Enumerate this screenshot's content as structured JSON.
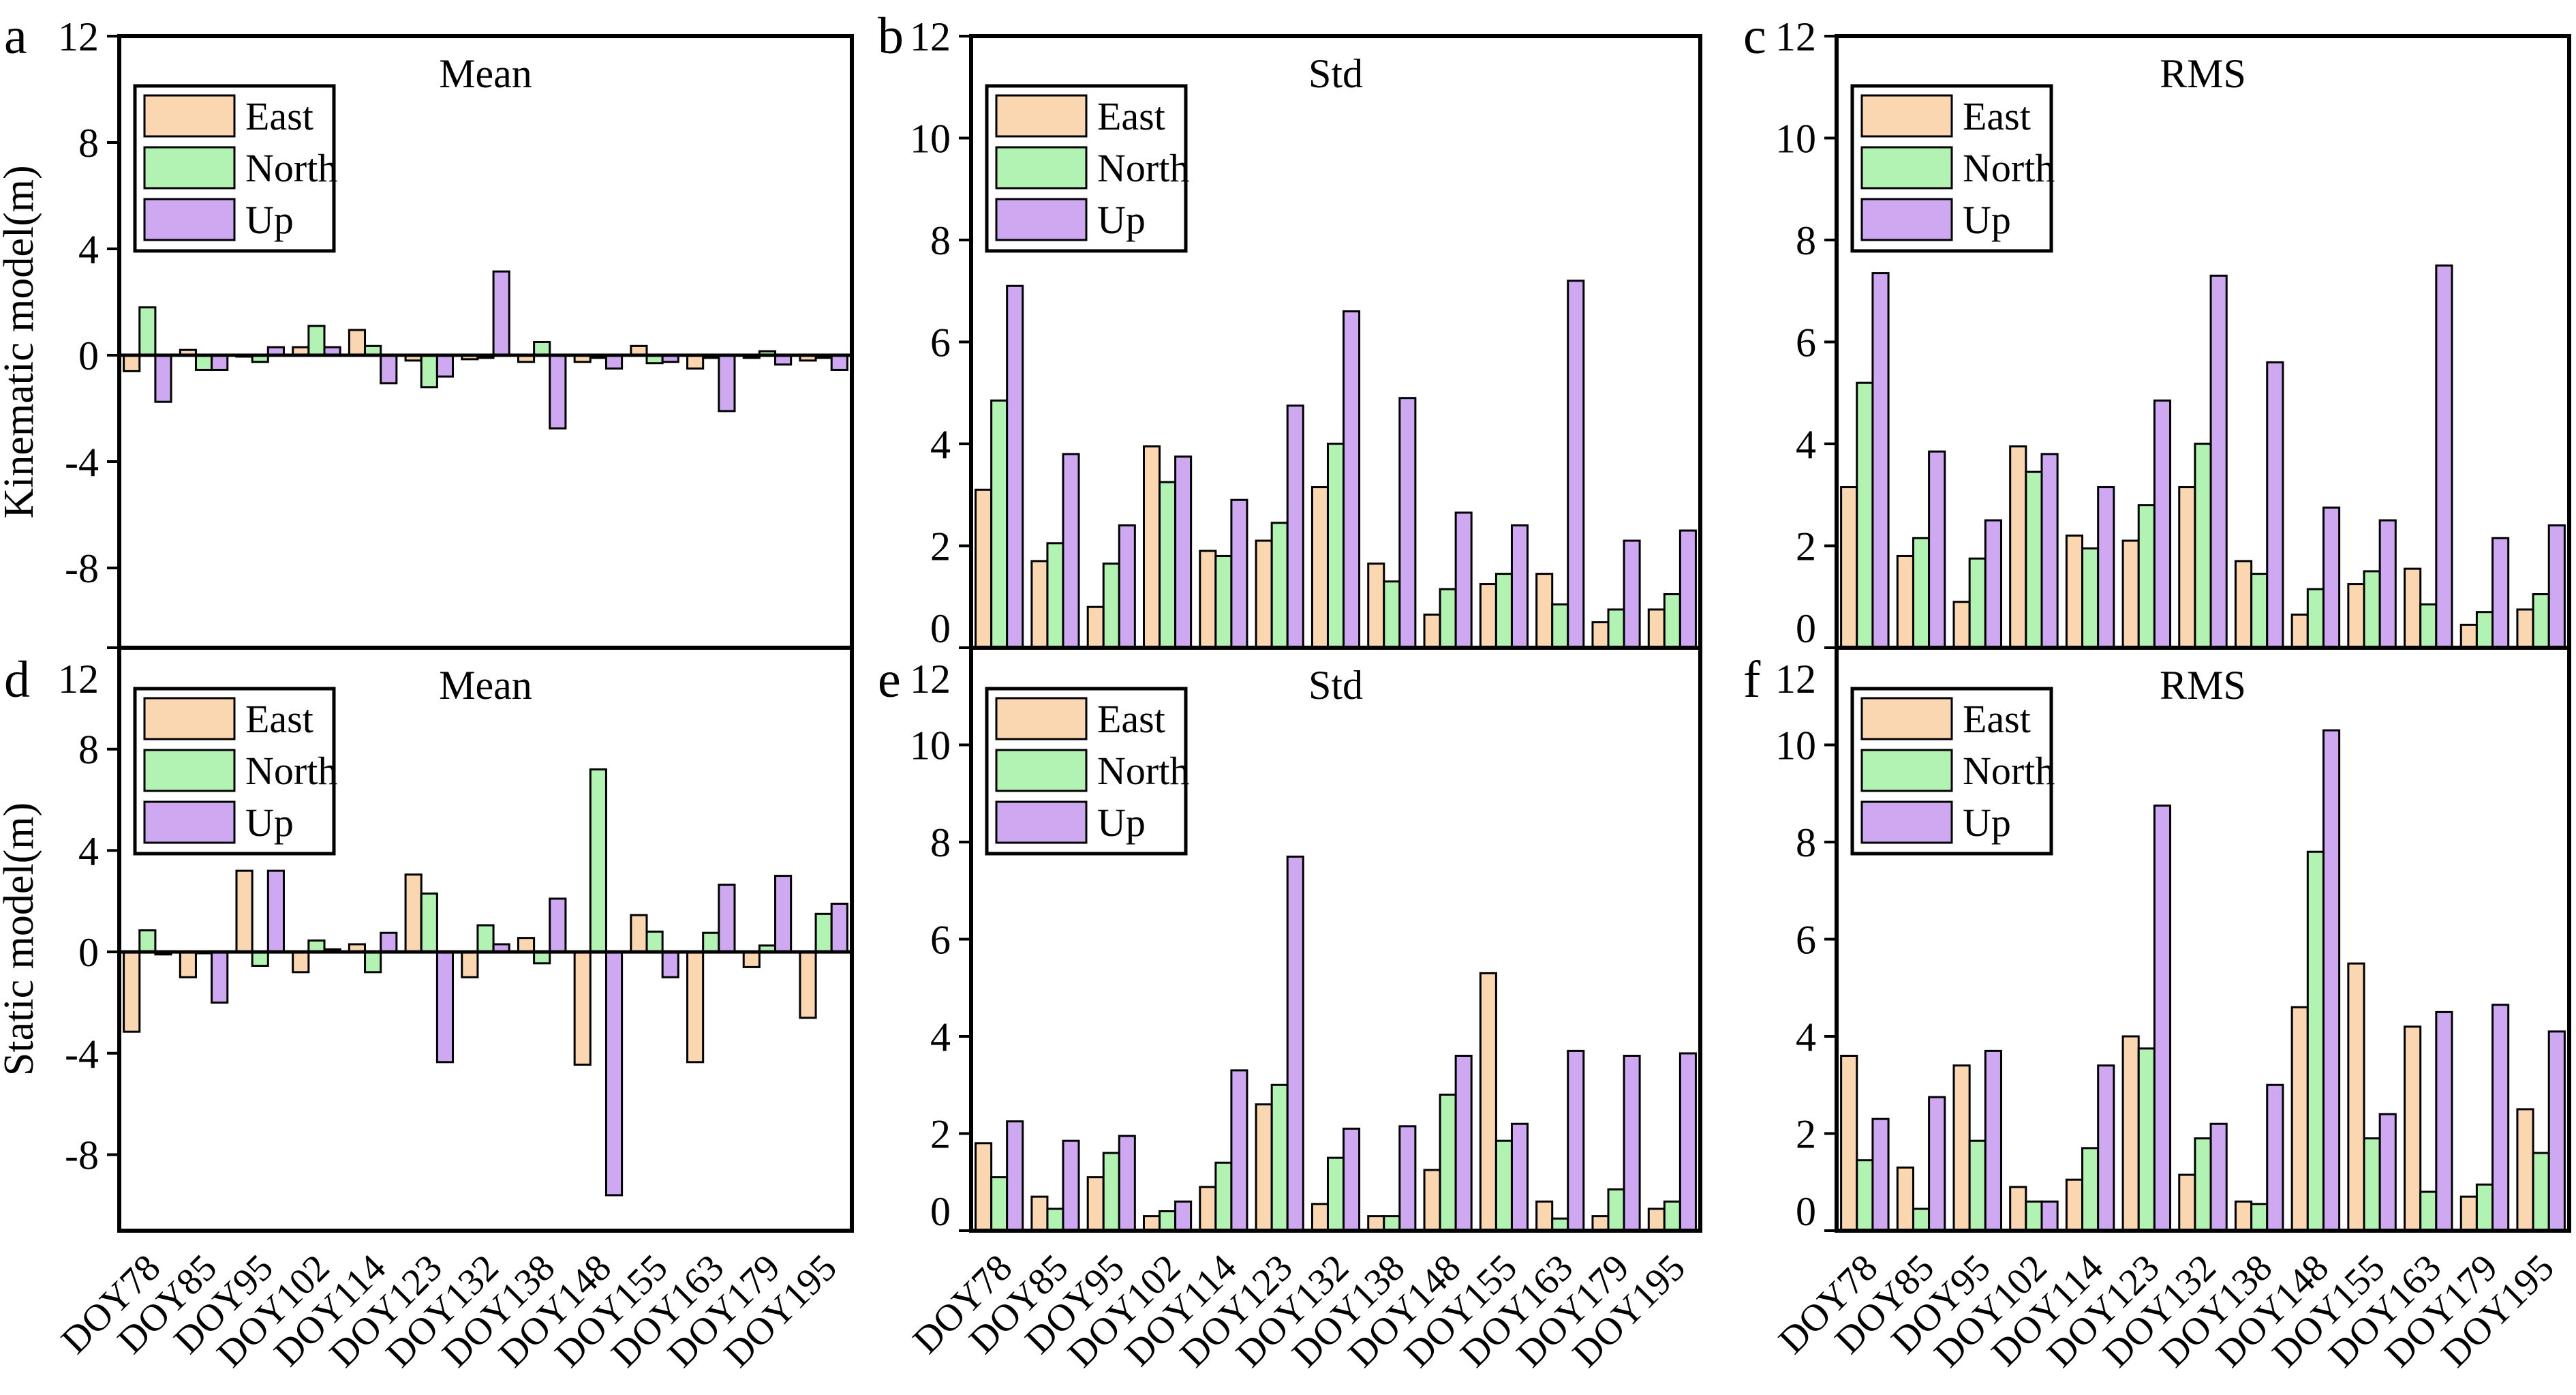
{
  "figure": {
    "background": "#ffffff",
    "axis_color": "#000000",
    "y_axis_titles": {
      "top_row": "Kinematic model(m)",
      "bottom_row": "Static model(m)"
    },
    "legend": {
      "entries": [
        {
          "label": "East",
          "color": "#FAD6B1"
        },
        {
          "label": "North",
          "color": "#B2F2B2"
        },
        {
          "label": "Up",
          "color": "#CEA9F2"
        }
      ],
      "position": "upper-left"
    }
  },
  "chart_data": [
    {
      "id": "a",
      "letter": "a",
      "title": "Mean",
      "type": "bar",
      "row": "top",
      "y_label": "Kinematic model(m)",
      "ylim": [
        -11,
        12
      ],
      "yticks": [
        12,
        8,
        4,
        0,
        -4,
        -8
      ],
      "grid": false,
      "show_x_labels": false,
      "categories": [
        "DOY78",
        "DOY85",
        "DOY95",
        "DOY102",
        "DOY114",
        "DOY123",
        "DOY132",
        "DOY138",
        "DOY148",
        "DOY155",
        "DOY163",
        "DOY179",
        "DOY195"
      ],
      "series": [
        {
          "name": "East",
          "values": [
            -0.6,
            0.2,
            -0.05,
            0.3,
            0.95,
            -0.2,
            -0.15,
            -0.25,
            -0.25,
            0.35,
            -0.5,
            -0.1,
            -0.2
          ]
        },
        {
          "name": "North",
          "values": [
            1.8,
            -0.55,
            -0.25,
            1.1,
            0.35,
            -1.2,
            -0.1,
            0.5,
            -0.1,
            -0.3,
            -0.1,
            0.15,
            -0.1
          ]
        },
        {
          "name": "Up",
          "values": [
            -1.75,
            -0.55,
            0.3,
            0.3,
            -1.05,
            -0.8,
            3.15,
            -2.75,
            -0.5,
            -0.25,
            -2.1,
            -0.35,
            -0.55
          ]
        }
      ]
    },
    {
      "id": "b",
      "letter": "b",
      "title": "Std",
      "type": "bar",
      "row": "top",
      "y_label": "",
      "ylim": [
        0,
        12
      ],
      "yticks": [
        12,
        10,
        8,
        6,
        4,
        2,
        0
      ],
      "grid": false,
      "show_x_labels": false,
      "categories": [
        "DOY78",
        "DOY85",
        "DOY95",
        "DOY102",
        "DOY114",
        "DOY123",
        "DOY132",
        "DOY138",
        "DOY148",
        "DOY155",
        "DOY163",
        "DOY179",
        "DOY195"
      ],
      "series": [
        {
          "name": "East",
          "values": [
            3.1,
            1.7,
            0.8,
            3.95,
            1.9,
            2.1,
            3.15,
            1.65,
            0.65,
            1.25,
            1.45,
            0.5,
            0.75
          ]
        },
        {
          "name": "North",
          "values": [
            4.85,
            2.05,
            1.65,
            3.25,
            1.8,
            2.45,
            4.0,
            1.3,
            1.15,
            1.45,
            0.85,
            0.75,
            1.05
          ]
        },
        {
          "name": "Up",
          "values": [
            7.1,
            3.8,
            2.4,
            3.75,
            2.9,
            4.75,
            6.6,
            4.9,
            2.65,
            2.4,
            7.2,
            2.1,
            2.3
          ]
        }
      ]
    },
    {
      "id": "c",
      "letter": "c",
      "title": "RMS",
      "type": "bar",
      "row": "top",
      "y_label": "",
      "ylim": [
        0,
        12
      ],
      "yticks": [
        12,
        10,
        8,
        6,
        4,
        2,
        0
      ],
      "grid": false,
      "show_x_labels": false,
      "categories": [
        "DOY78",
        "DOY85",
        "DOY95",
        "DOY102",
        "DOY114",
        "DOY123",
        "DOY132",
        "DOY138",
        "DOY148",
        "DOY155",
        "DOY163",
        "DOY179",
        "DOY195"
      ],
      "series": [
        {
          "name": "East",
          "values": [
            3.15,
            1.8,
            0.9,
            3.95,
            2.2,
            2.1,
            3.15,
            1.7,
            0.65,
            1.25,
            1.55,
            0.45,
            0.75
          ]
        },
        {
          "name": "North",
          "values": [
            5.2,
            2.15,
            1.75,
            3.45,
            1.95,
            2.8,
            4.0,
            1.45,
            1.15,
            1.5,
            0.85,
            0.7,
            1.05
          ]
        },
        {
          "name": "Up",
          "values": [
            7.35,
            3.85,
            2.5,
            3.8,
            3.15,
            4.85,
            7.3,
            5.6,
            2.75,
            2.5,
            7.5,
            2.15,
            2.4
          ]
        }
      ]
    },
    {
      "id": "d",
      "letter": "d",
      "title": "Mean",
      "type": "bar",
      "row": "bottom",
      "y_label": "Static model(m)",
      "ylim": [
        -11,
        12
      ],
      "yticks": [
        12,
        8,
        4,
        0,
        -4,
        -8
      ],
      "grid": false,
      "show_x_labels": true,
      "categories": [
        "DOY78",
        "DOY85",
        "DOY95",
        "DOY102",
        "DOY114",
        "DOY123",
        "DOY132",
        "DOY138",
        "DOY148",
        "DOY155",
        "DOY163",
        "DOY179",
        "DOY195"
      ],
      "series": [
        {
          "name": "East",
          "values": [
            -3.15,
            -1.0,
            3.2,
            -0.8,
            0.3,
            3.05,
            -1.0,
            0.55,
            -4.45,
            1.45,
            -4.35,
            -0.6,
            -2.6
          ]
        },
        {
          "name": "North",
          "values": [
            0.85,
            -0.05,
            -0.55,
            0.45,
            -0.8,
            2.3,
            1.05,
            -0.45,
            7.2,
            0.8,
            0.75,
            0.25,
            1.5
          ]
        },
        {
          "name": "Up",
          "values": [
            -0.1,
            -2.0,
            3.2,
            0.1,
            0.75,
            -4.35,
            0.3,
            2.1,
            -9.6,
            -1.0,
            2.65,
            3.0,
            1.9
          ]
        }
      ]
    },
    {
      "id": "e",
      "letter": "e",
      "title": "Std",
      "type": "bar",
      "row": "bottom",
      "y_label": "",
      "ylim": [
        0,
        12
      ],
      "yticks": [
        12,
        10,
        8,
        6,
        4,
        2,
        0
      ],
      "grid": false,
      "show_x_labels": true,
      "categories": [
        "DOY78",
        "DOY85",
        "DOY95",
        "DOY102",
        "DOY114",
        "DOY123",
        "DOY132",
        "DOY138",
        "DOY148",
        "DOY155",
        "DOY163",
        "DOY179",
        "DOY195"
      ],
      "series": [
        {
          "name": "East",
          "values": [
            1.8,
            0.7,
            1.1,
            0.3,
            0.9,
            2.6,
            0.55,
            0.3,
            1.25,
            5.3,
            0.6,
            0.3,
            0.45
          ]
        },
        {
          "name": "North",
          "values": [
            1.1,
            0.45,
            1.6,
            0.4,
            1.4,
            3.0,
            1.5,
            0.3,
            2.8,
            1.85,
            0.25,
            0.85,
            0.6
          ]
        },
        {
          "name": "Up",
          "values": [
            2.25,
            1.85,
            1.95,
            0.6,
            3.3,
            7.7,
            2.1,
            2.15,
            3.6,
            2.2,
            3.7,
            3.6,
            3.65
          ]
        }
      ]
    },
    {
      "id": "f",
      "letter": "f",
      "title": "RMS",
      "type": "bar",
      "row": "bottom",
      "y_label": "",
      "ylim": [
        0,
        12
      ],
      "yticks": [
        12,
        10,
        8,
        6,
        4,
        2,
        0
      ],
      "grid": false,
      "show_x_labels": true,
      "categories": [
        "DOY78",
        "DOY85",
        "DOY95",
        "DOY102",
        "DOY114",
        "DOY123",
        "DOY132",
        "DOY138",
        "DOY148",
        "DOY155",
        "DOY163",
        "DOY179",
        "DOY195"
      ],
      "series": [
        {
          "name": "East",
          "values": [
            3.6,
            1.3,
            3.4,
            0.9,
            1.05,
            4.0,
            1.15,
            0.6,
            4.6,
            5.5,
            4.2,
            0.7,
            2.5
          ]
        },
        {
          "name": "North",
          "values": [
            1.45,
            0.45,
            1.85,
            0.6,
            1.7,
            3.75,
            1.9,
            0.55,
            7.8,
            1.9,
            0.8,
            0.95,
            1.6
          ]
        },
        {
          "name": "Up",
          "values": [
            2.3,
            2.75,
            3.7,
            0.6,
            3.4,
            8.75,
            2.2,
            3.0,
            10.3,
            2.4,
            4.5,
            4.65,
            4.1
          ]
        }
      ]
    }
  ]
}
